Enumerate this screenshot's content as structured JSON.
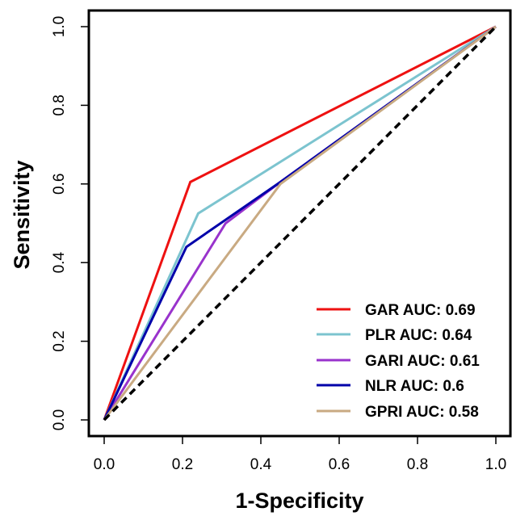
{
  "chart_data": {
    "type": "line",
    "title": "",
    "xlabel": "1-Specificity",
    "ylabel": "Sensitivity",
    "xlim": [
      0,
      1
    ],
    "ylim": [
      0,
      1
    ],
    "xticks": [
      "0.0",
      "0.2",
      "0.4",
      "0.6",
      "0.8",
      "1.0"
    ],
    "yticks": [
      "0.0",
      "0.2",
      "0.4",
      "0.6",
      "0.8",
      "1.0"
    ],
    "grid": false,
    "legend_position": "bottom-right",
    "reference_line": {
      "style": "dashed",
      "color": "#000000",
      "points": [
        [
          0,
          0
        ],
        [
          1,
          1
        ]
      ]
    },
    "series": [
      {
        "name": "GAR AUC: 0.69",
        "color": "#ee1111",
        "points": [
          [
            0,
            0
          ],
          [
            0.22,
            0.605
          ],
          [
            1,
            1
          ]
        ]
      },
      {
        "name": "PLR AUC: 0.64",
        "color": "#7cc4cf",
        "points": [
          [
            0,
            0
          ],
          [
            0.24,
            0.525
          ],
          [
            1,
            1
          ]
        ]
      },
      {
        "name": "GARI AUC: 0.61",
        "color": "#9933cc",
        "points": [
          [
            0,
            0
          ],
          [
            0.31,
            0.5
          ],
          [
            0.45,
            0.605
          ],
          [
            1,
            1
          ]
        ]
      },
      {
        "name": "NLR AUC: 0.6",
        "color": "#0000aa",
        "points": [
          [
            0,
            0
          ],
          [
            0.21,
            0.44
          ],
          [
            0.45,
            0.605
          ],
          [
            1,
            1
          ]
        ]
      },
      {
        "name": "GPRI AUC: 0.58",
        "color": "#c9aa82",
        "points": [
          [
            0,
            0
          ],
          [
            0.45,
            0.6
          ],
          [
            1,
            1
          ]
        ]
      }
    ]
  }
}
